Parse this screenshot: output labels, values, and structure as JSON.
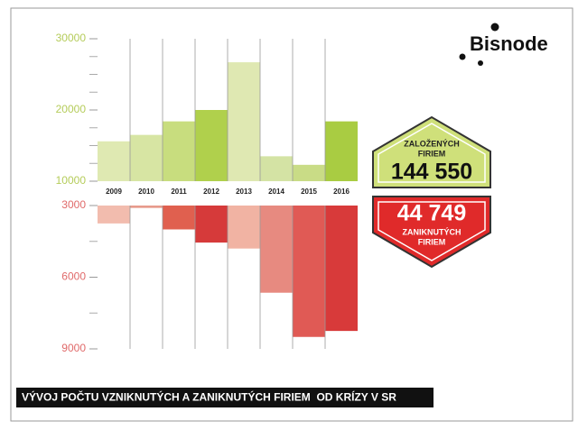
{
  "chart_data": [
    {
      "type": "bar",
      "categories": [
        "2009",
        "2010",
        "2011",
        "2012",
        "2013",
        "2014",
        "2015",
        "2016"
      ],
      "values": [
        15600,
        16500,
        18400,
        20000,
        26700,
        13500,
        12300,
        18400
      ],
      "colors": [
        "#dfe9b2",
        "#d7e5a3",
        "#c8dd7e",
        "#b0d04c",
        "#dfe8b2",
        "#d4e3a4",
        "#c9dc86",
        "#a9cc42"
      ],
      "axis_color": "#b5cc5a",
      "ylim": [
        10000,
        30000
      ],
      "yticks": [
        10000,
        20000,
        30000
      ],
      "yminorticks": [
        12500,
        15000,
        17500,
        22500,
        25000,
        27500
      ]
    },
    {
      "type": "bar",
      "inverted": true,
      "values": [
        3750,
        3100,
        4000,
        4550,
        4800,
        6650,
        8500,
        8250
      ],
      "colors": [
        "#f2bcae",
        "#e79b8c",
        "#e0604f",
        "#d63a3a",
        "#f1b3a3",
        "#e78a80",
        "#e05a55",
        "#d83a3a"
      ],
      "axis_color": "#e06a6a",
      "ylim": [
        3000,
        9000
      ],
      "yticks": [
        3000,
        6000,
        9000
      ],
      "yminorticks": [
        4500,
        7500
      ]
    }
  ],
  "logo": "Bisnode",
  "callouts": [
    {
      "lines": [
        "ZALOŽENÝCH",
        "FIRIEM"
      ],
      "value": "144 550"
    },
    {
      "lines": [
        "ZANIKNUTÝCH",
        "FIRIEM"
      ],
      "value": "44 749"
    }
  ],
  "footer_title": "VÝVOJ POČTU VZNIKNUTÝCH A ZANIKNUTÝCH FIRIEM  OD KRÍZY V SR"
}
